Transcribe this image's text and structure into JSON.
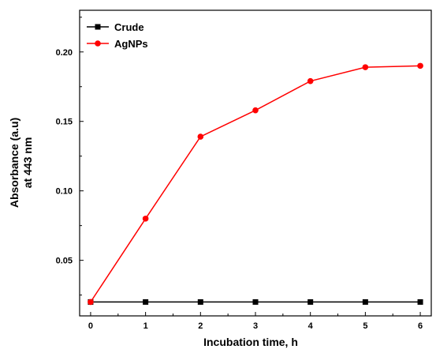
{
  "chart_data": {
    "type": "line",
    "x": [
      0,
      1,
      2,
      3,
      4,
      5,
      6
    ],
    "series": [
      {
        "name": "Crude",
        "values": [
          0.02,
          0.02,
          0.02,
          0.02,
          0.02,
          0.02,
          0.02
        ],
        "color": "#000000",
        "marker": "square"
      },
      {
        "name": "AgNPs",
        "values": [
          0.02,
          0.08,
          0.139,
          0.158,
          0.179,
          0.189,
          0.19
        ],
        "color": "#ff0000",
        "marker": "circle"
      }
    ],
    "xlabel": "Incubation time, h",
    "ylabel_lines": [
      "Absorbance (a.u)",
      "at 443 nm"
    ],
    "xlim": [
      -0.2,
      6.2
    ],
    "ylim": [
      0.01,
      0.23
    ],
    "xticks": [
      0,
      1,
      2,
      3,
      4,
      5,
      6
    ],
    "yticks": [
      0.05,
      0.1,
      0.15,
      0.2
    ],
    "ytick_labels": [
      "0.05",
      "0.10",
      "0.15",
      "0.20"
    ],
    "grid": false,
    "legend_position": "top-left"
  }
}
